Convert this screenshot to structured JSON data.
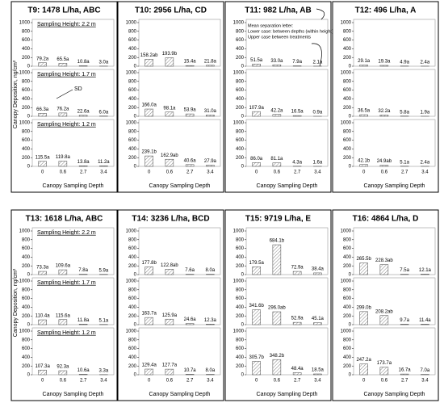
{
  "chart_data": [
    {
      "type": "bar",
      "title": "T9: 1478 L/ha, ABC",
      "ylabel": "Canopy Deposition, ng/cm²",
      "xlabel": "Canopy Sampling Depth",
      "categories": [
        "0",
        "0.6",
        "2.7",
        "3.4"
      ],
      "ylim": [
        0,
        1000
      ],
      "yticks": [
        0,
        200,
        400,
        600,
        800,
        1000
      ],
      "panels": [
        {
          "label": "Sampling Height: 2.2 m",
          "values": [
            79.2,
            65.5,
            10.8,
            3.0
          ],
          "value_labels": [
            "79.2a",
            "65.5a",
            "10.8a",
            "3.0a"
          ]
        },
        {
          "label": "Sampling Height: 1.7 m",
          "annotation": "SD",
          "values": [
            66.3,
            76.2,
            22.6,
            6.0
          ],
          "value_labels": [
            "66.3a",
            "76.2a",
            "22.6a",
            "6.0a"
          ]
        },
        {
          "label": "Sampling Height: 1.2 m",
          "values": [
            115.5,
            119.8,
            13.8,
            11.2
          ],
          "value_labels": [
            "115.5a",
            "119.8a",
            "13.8a",
            "11.2a"
          ]
        }
      ]
    },
    {
      "type": "bar",
      "title": "T10: 2956 L/ha, CD",
      "xlabel": "Canopy Sampling Depth",
      "categories": [
        "0",
        "0.6",
        "2.7",
        "3.4"
      ],
      "ylim": [
        0,
        1000
      ],
      "yticks": [
        0,
        200,
        400,
        600,
        800,
        1000
      ],
      "panels": [
        {
          "values": [
            158.2,
            193.9,
            15.4,
            21.8
          ],
          "value_labels": [
            "158.2ab",
            "193.9b",
            "15.4a",
            "21.8a"
          ]
        },
        {
          "values": [
            166.0,
            98.1,
            53.9,
            31.0
          ],
          "value_labels": [
            "166.0a",
            "98.1a",
            "53.9a",
            "31.0a"
          ]
        },
        {
          "values": [
            239.1,
            162.9,
            40.6,
            27.9
          ],
          "value_labels": [
            "239.1b",
            "162.9ab",
            "40.6a",
            "27.9a"
          ]
        }
      ]
    },
    {
      "type": "bar",
      "title": "T11: 982 L/ha, AB",
      "note": [
        "Mean separation letter:",
        "Lower case: between depths (within height)",
        "Upper case between treatments"
      ],
      "xlabel": "Canopy Sampling Depth",
      "categories": [
        "0",
        "0.6",
        "2.7",
        "3.4"
      ],
      "ylim": [
        0,
        1000
      ],
      "yticks": [
        0,
        200,
        400,
        600,
        800,
        1000
      ],
      "panels": [
        {
          "values": [
            51.5,
            33.0,
            7.9,
            2.1
          ],
          "value_labels": [
            "51.5a",
            "33.0a",
            "7.9a",
            "2.1a"
          ]
        },
        {
          "values": [
            107.9,
            42.2,
            16.5,
            0.9
          ],
          "value_labels": [
            "107.9a",
            "42.2a",
            "16.5a",
            "0.9a"
          ]
        },
        {
          "values": [
            86.0,
            81.1,
            4.3,
            1.6
          ],
          "value_labels": [
            "86.0a",
            "81.1a",
            "4.3a",
            "1.6a"
          ]
        }
      ]
    },
    {
      "type": "bar",
      "title": "T12: 496 L/ha, A",
      "xlabel": "Canopy Sampling Depth",
      "categories": [
        "0",
        "0.6",
        "2.7",
        "3.4"
      ],
      "ylim": [
        0,
        1000
      ],
      "yticks": [
        0,
        200,
        400,
        600,
        800,
        1000
      ],
      "panels": [
        {
          "values": [
            29.1,
            19.3,
            4.9,
            2.4
          ],
          "value_labels": [
            "29.1a",
            "19.3a",
            "4.9a",
            "2.4a"
          ]
        },
        {
          "values": [
            36.5,
            32.2,
            5.8,
            1.9
          ],
          "value_labels": [
            "36.5a",
            "32.2a",
            "5.8a",
            "1.9a"
          ]
        },
        {
          "values": [
            42.1,
            24.9,
            5.1,
            2.4
          ],
          "value_labels": [
            "42.1b",
            "24.9ab",
            "5.1a",
            "2.4a"
          ]
        }
      ]
    },
    {
      "type": "bar",
      "title": "T13: 1618 L/ha, ABC",
      "ylabel": "Canopy Deposition, ng/cm²",
      "xlabel": "Canopy Sampling Depth",
      "categories": [
        "0",
        "0.6",
        "2.7",
        "3.4"
      ],
      "ylim": [
        0,
        1000
      ],
      "yticks": [
        0,
        200,
        400,
        600,
        800,
        1000
      ],
      "panels": [
        {
          "label": "Sampling Height: 2.2 m",
          "values": [
            73.3,
            109.6,
            7.8,
            5.9
          ],
          "value_labels": [
            "73.3a",
            "109.6a",
            "7.8a",
            "5.9a"
          ]
        },
        {
          "label": "Sampling Height: 1.7 m",
          "values": [
            110.4,
            115.6,
            11.8,
            5.1
          ],
          "value_labels": [
            "110.4a",
            "115.6a",
            "11.8a",
            "5.1a"
          ]
        },
        {
          "label": "Sampling Height: 1.2 m",
          "values": [
            107.3,
            92.3,
            10.6,
            3.3
          ],
          "value_labels": [
            "107.3a",
            "92.3a",
            "10.6a",
            "3.3a"
          ]
        }
      ]
    },
    {
      "type": "bar",
      "title": "T14: 3236 L/ha, BCD",
      "xlabel": "Canopy Sampling Depth",
      "categories": [
        "0",
        "0.6",
        "2.7",
        "3.4"
      ],
      "ylim": [
        0,
        1000
      ],
      "yticks": [
        0,
        200,
        400,
        600,
        800,
        1000
      ],
      "panels": [
        {
          "values": [
            177.8,
            122.8,
            7.6,
            8.0
          ],
          "value_labels": [
            "177.8b",
            "122.8ab",
            "7.6a",
            "8.0a"
          ]
        },
        {
          "values": [
            163.7,
            125.9,
            24.6,
            12.3
          ],
          "value_labels": [
            "163.7a",
            "125.9a",
            "24.6a",
            "12.3a"
          ]
        },
        {
          "values": [
            129.4,
            127.7,
            10.7,
            8.0
          ],
          "value_labels": [
            "129.4a",
            "127.7a",
            "10.7a",
            "8.0a"
          ]
        }
      ]
    },
    {
      "type": "bar",
      "title": "T15: 9719 L/ha, E",
      "xlabel": "Canopy Sampling Depth",
      "categories": [
        "0",
        "0.6",
        "2.7",
        "3.4"
      ],
      "ylim": [
        0,
        1000
      ],
      "yticks": [
        0,
        200,
        400,
        600,
        800,
        1000
      ],
      "panels": [
        {
          "values": [
            179.5,
            684.1,
            72.9,
            38.4
          ],
          "value_labels": [
            "179.5a",
            "684.1b",
            "72.9a",
            "38.4a"
          ]
        },
        {
          "values": [
            341.6,
            296.0,
            52.9,
            45.1
          ],
          "value_labels": [
            "341.6b",
            "296.0ab",
            "52.9a",
            "45.1a"
          ]
        },
        {
          "values": [
            305.7,
            348.2,
            48.4,
            18.5
          ],
          "value_labels": [
            "305.7b",
            "348.2b",
            "48.4a",
            "18.5a"
          ]
        }
      ]
    },
    {
      "type": "bar",
      "title": "T16: 4864 L/ha, D",
      "xlabel": "Canopy Sampling Depth",
      "categories": [
        "0",
        "0.6",
        "2.7",
        "3.4"
      ],
      "ylim": [
        0,
        1000
      ],
      "yticks": [
        0,
        200,
        400,
        600,
        800,
        1000
      ],
      "panels": [
        {
          "values": [
            265.5,
            228.3,
            7.5,
            12.1
          ],
          "value_labels": [
            "265.5b",
            "228.3ab",
            "7.5a",
            "12.1a"
          ]
        },
        {
          "values": [
            299.0,
            208.2,
            9.7,
            11.4
          ],
          "value_labels": [
            "299.0b",
            "208.2ab",
            "9.7a",
            "11.4a"
          ]
        },
        {
          "values": [
            247.2,
            173.7,
            16.7,
            7.0
          ],
          "value_labels": [
            "247.2a",
            "173.7a",
            "16.7a",
            "7.0a"
          ]
        }
      ]
    }
  ]
}
